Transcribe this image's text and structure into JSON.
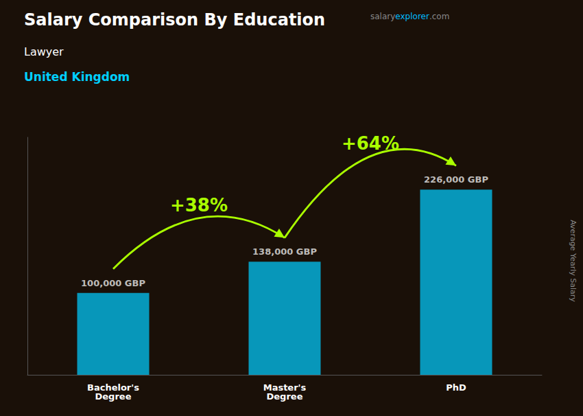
{
  "chart_data": {
    "type": "bar",
    "title": "Salary Comparison By Education",
    "subtitle": [
      "Lawyer",
      "United Kingdom"
    ],
    "ylabel": "Average Yearly Salary",
    "source": [
      {
        "text": "salary",
        "color": "#888888"
      },
      {
        "text": "explorer",
        "color": "#00bbff"
      },
      {
        "text": ".com",
        "color": "#888888"
      }
    ],
    "categories": [
      "Bachelor's\nDegree",
      "Master's\nDegree",
      "PhD"
    ],
    "values": [
      100000,
      138000,
      226000
    ],
    "value_labels": [
      "100,000 GBP",
      "138,000 GBP",
      "226,000 GBP"
    ],
    "data_labels": true,
    "color": "#00ccff",
    "ylim": [
      0,
      290000
    ],
    "yticks": [],
    "grid": false,
    "tick_labels": "x",
    "annotations": [
      {
        "text": "+38%",
        "from": 0,
        "to": 1,
        "color": "#aaff00"
      },
      {
        "text": "+64%",
        "from": 1,
        "to": 2,
        "color": "#aaff00"
      }
    ]
  }
}
